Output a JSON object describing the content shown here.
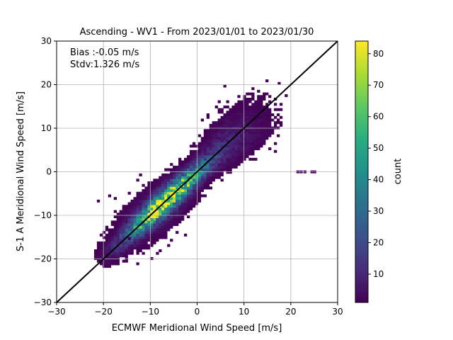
{
  "chart_data": {
    "type": "heatmap",
    "title": "Ascending - WV1 - From 2023/01/01 to 2023/01/30",
    "xlabel": "ECMWF Meridional Wind Speed [m/s]",
    "ylabel": "S-1 A Meridional Wind Speed [m/s]",
    "xlim": [
      -30,
      30
    ],
    "ylim": [
      -30,
      30
    ],
    "xticks": [
      "−30",
      "−20",
      "−10",
      "0",
      "10",
      "20",
      "30"
    ],
    "yticks": [
      "−30",
      "−20",
      "−10",
      "0",
      "10",
      "20",
      "30"
    ],
    "grid": true,
    "annotations": {
      "bias": "Bias :-0.05 m/s",
      "stdv": "Stdv:1.326 m/s"
    },
    "reference_line": {
      "slope": 1,
      "intercept": 0,
      "color": "#000000"
    },
    "density_model": {
      "bin_size": 0.6,
      "max_count": 83,
      "peak_center": [
        -7,
        -7
      ],
      "core_std_along": 7.5,
      "core_std_perp": 1.33,
      "tail_range": [
        -21,
        17
      ],
      "outliers": [
        [
          21.5,
          0
        ],
        [
          22.2,
          0
        ],
        [
          23.0,
          0
        ],
        [
          24.5,
          0
        ],
        [
          25.1,
          0
        ],
        [
          -19.4,
          -19.4
        ],
        [
          -14.5,
          -15.3
        ],
        [
          17.5,
          20.3
        ],
        [
          19.0,
          17.5
        ]
      ]
    },
    "colorbar": {
      "label": "count",
      "colormap": "viridis",
      "min": 1,
      "max": 84,
      "ticks": [
        "10",
        "20",
        "30",
        "40",
        "50",
        "60",
        "70",
        "80"
      ]
    }
  }
}
